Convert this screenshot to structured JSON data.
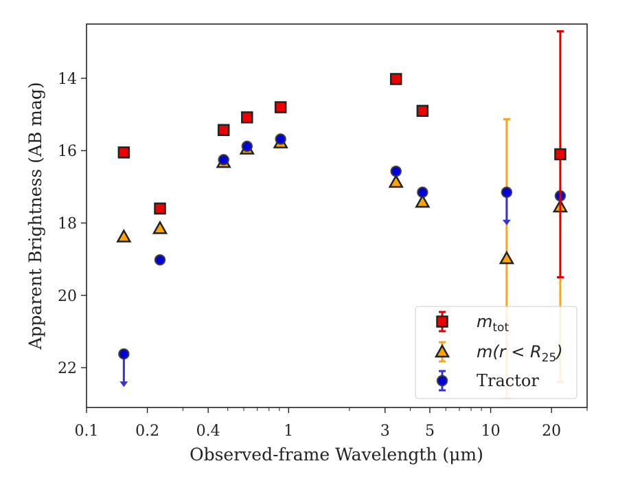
{
  "chart_data": {
    "type": "scatter",
    "xlabel": "Observed-frame Wavelength (μm)",
    "ylabel": "Apparent Brightness (AB mag)",
    "x_scale": "log",
    "xlim": [
      0.1,
      30
    ],
    "ylim": [
      23.1,
      12.5
    ],
    "y_inverted": true,
    "x_ticks": [
      {
        "value": 0.1,
        "label": "0.1"
      },
      {
        "value": 0.2,
        "label": "0.2"
      },
      {
        "value": 0.4,
        "label": "0.4"
      },
      {
        "value": 1,
        "label": "1"
      },
      {
        "value": 3,
        "label": "3"
      },
      {
        "value": 5,
        "label": "5"
      },
      {
        "value": 10,
        "label": "10"
      },
      {
        "value": 20,
        "label": "20"
      }
    ],
    "y_ticks": [
      {
        "value": 14,
        "label": "14"
      },
      {
        "value": 16,
        "label": "16"
      },
      {
        "value": 18,
        "label": "18"
      },
      {
        "value": 20,
        "label": "20"
      },
      {
        "value": 22,
        "label": "22"
      }
    ],
    "legend_position": "lower-right",
    "series": [
      {
        "name": "m_tot",
        "legend_parts": {
          "base": "m",
          "sub": "tot"
        },
        "marker": "square",
        "fill": "#ee0000",
        "edge": "#222222",
        "errcolor": "#dd0000",
        "points": [
          {
            "x": 0.153,
            "y": 16.05
          },
          {
            "x": 0.231,
            "y": 17.6
          },
          {
            "x": 0.477,
            "y": 15.43
          },
          {
            "x": 0.623,
            "y": 15.08
          },
          {
            "x": 0.913,
            "y": 14.8
          },
          {
            "x": 3.4,
            "y": 14.02
          },
          {
            "x": 4.6,
            "y": 14.9
          },
          {
            "x": 22.1,
            "y": 16.1,
            "yerr": 3.4
          }
        ]
      },
      {
        "name": "m(r < R25)",
        "legend_parts": {
          "base": "m(r < R",
          "sub": "25",
          "tail": ")"
        },
        "marker": "triangle",
        "fill": "#ffa500",
        "edge": "#222222",
        "errcolor": "#f5a623",
        "points": [
          {
            "x": 0.153,
            "y": 18.38
          },
          {
            "x": 0.231,
            "y": 18.15
          },
          {
            "x": 0.477,
            "y": 16.32
          },
          {
            "x": 0.623,
            "y": 15.95
          },
          {
            "x": 0.913,
            "y": 15.78
          },
          {
            "x": 3.4,
            "y": 16.87
          },
          {
            "x": 4.6,
            "y": 17.42
          },
          {
            "x": 12.0,
            "y": 18.98,
            "yerr": 3.85
          },
          {
            "x": 22.1,
            "y": 17.55,
            "yerr": 4.85
          }
        ]
      },
      {
        "name": "Tractor",
        "marker": "circle",
        "fill": "#0000dd",
        "edge": "#333333",
        "errcolor": "#3333dd",
        "points": [
          {
            "x": 0.153,
            "y": 21.62,
            "upper_limit": true
          },
          {
            "x": 0.231,
            "y": 19.02
          },
          {
            "x": 0.477,
            "y": 16.25
          },
          {
            "x": 0.623,
            "y": 15.88
          },
          {
            "x": 0.913,
            "y": 15.68
          },
          {
            "x": 3.4,
            "y": 16.57
          },
          {
            "x": 4.6,
            "y": 17.15
          },
          {
            "x": 12.0,
            "y": 17.15,
            "upper_limit": true
          },
          {
            "x": 22.1,
            "y": 17.25
          }
        ]
      }
    ]
  }
}
